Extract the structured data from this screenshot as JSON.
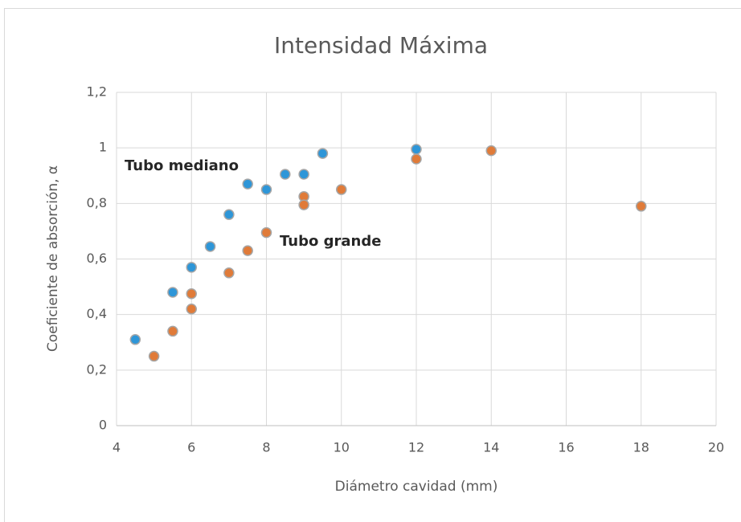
{
  "chart_data": {
    "type": "scatter",
    "title": "Intensidad Máxima",
    "x_label": "Diámetro cavidad (mm)",
    "y_label": "Coeficiente de absorción, α",
    "xlim": [
      4,
      20
    ],
    "xticks": [
      4,
      6,
      8,
      10,
      12,
      14,
      16,
      18,
      20
    ],
    "ylim": [
      0,
      1.2
    ],
    "yticks": [
      0,
      {
        "value": 0.2,
        "label": "0,2"
      },
      {
        "value": 0.4,
        "label": "0,4"
      },
      {
        "value": 0.6,
        "label": "0,6"
      },
      {
        "value": 0.8,
        "label": "0,8"
      },
      1,
      {
        "value": 1.2,
        "label": "1,2"
      }
    ],
    "grid": true,
    "series": [
      {
        "name": "Tubo mediano",
        "color": "#2e96d8",
        "x": [
          4.5,
          5.5,
          6,
          6.5,
          7,
          7.5,
          8,
          8.5,
          9,
          9.5,
          12
        ],
        "values": [
          0.31,
          0.48,
          0.57,
          0.645,
          0.76,
          0.87,
          0.85,
          0.905,
          0.905,
          0.98,
          0.995
        ]
      },
      {
        "name": "Tubo grande",
        "color": "#e07b39",
        "x": [
          5,
          5.5,
          6,
          6,
          7,
          7.5,
          8,
          9,
          9,
          10,
          12,
          14,
          18
        ],
        "values": [
          0.25,
          0.34,
          0.475,
          0.42,
          0.55,
          0.63,
          0.695,
          0.825,
          0.795,
          0.85,
          0.96,
          0.99,
          0.79
        ]
      }
    ]
  }
}
